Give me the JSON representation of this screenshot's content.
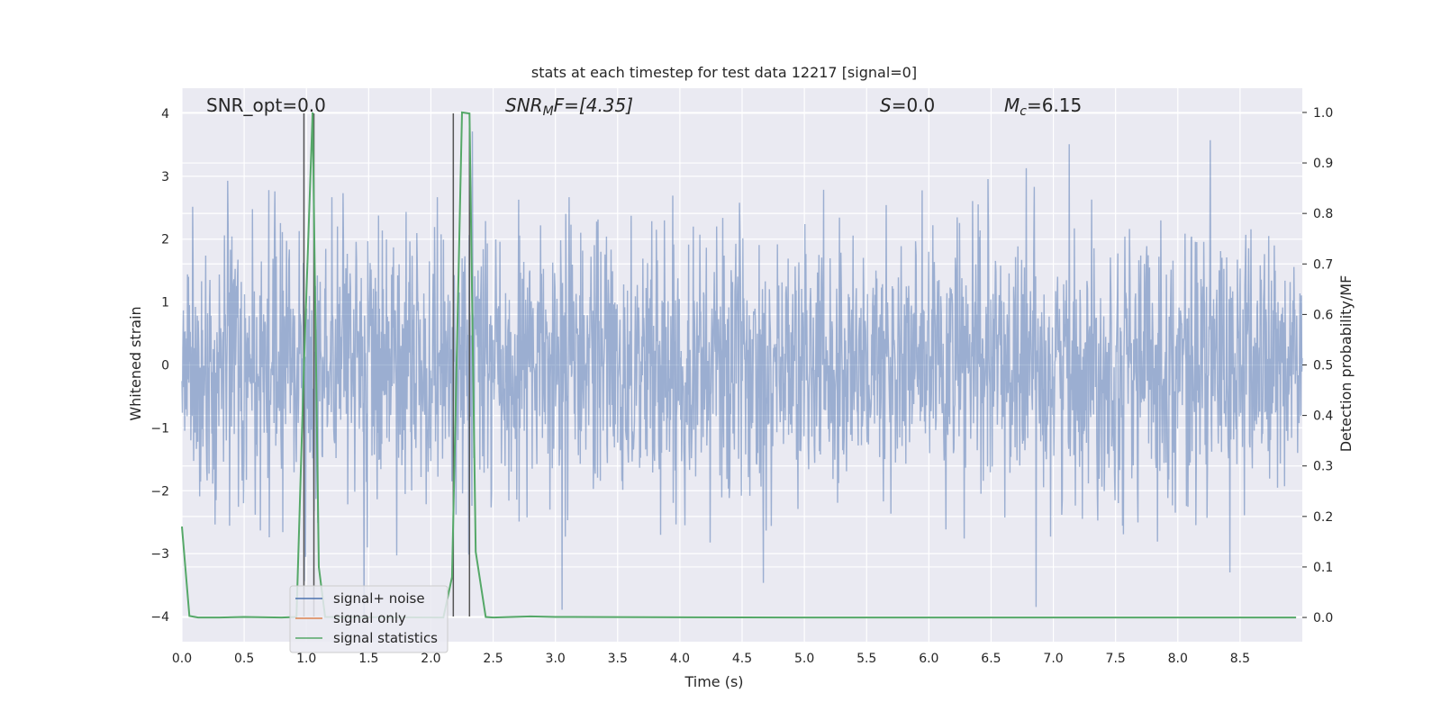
{
  "chart_data": {
    "type": "line",
    "title": "stats at each timestep for test data 12217 [signal=0]",
    "xlabel": "Time (s)",
    "ylabel": "Whitened strain",
    "y2label": "Detection probability/MF",
    "xlim": [
      0,
      9.0
    ],
    "ylim": [
      -4.4,
      4.4
    ],
    "y2lim": [
      -0.048,
      1.048
    ],
    "xticks": [
      "0.0",
      "0.5",
      "1.0",
      "1.5",
      "2.0",
      "2.5",
      "3.0",
      "3.5",
      "4.0",
      "4.5",
      "5.0",
      "5.5",
      "6.0",
      "6.5",
      "7.0",
      "7.5",
      "8.0",
      "8.5"
    ],
    "yticks": [
      "4",
      "3",
      "2",
      "1",
      "0",
      "−1",
      "−2",
      "−3",
      "−4"
    ],
    "y2ticks": [
      "1.0",
      "0.9",
      "0.8",
      "0.7",
      "0.6",
      "0.5",
      "0.4",
      "0.3",
      "0.2",
      "0.1",
      "0.0"
    ],
    "grid": true,
    "legend_position": "lower-left",
    "annotations": {
      "snr_opt": "SNR_opt=0.0",
      "snr_mf_base": "SNR",
      "snr_mf_sub": "M",
      "snr_mf_rest": "F=[4.35]",
      "s_var": "S",
      "s_rest": "=0.0",
      "mc_var": "M",
      "mc_sub": "c",
      "mc_rest": "=6.15"
    },
    "series": [
      {
        "name": "signal+ noise",
        "color": "#4c72b0",
        "description_values": "whitened noise ~ N(0,1), range approx [-4, 4]",
        "noise_std": 1.0,
        "x_range": [
          0,
          9.0
        ]
      },
      {
        "name": "signal only",
        "color": "#dd8452",
        "values": []
      },
      {
        "name": "signal statistics",
        "color": "#55a868",
        "x": [
          0.0,
          0.06,
          0.13,
          0.3,
          0.5,
          0.8,
          0.92,
          0.98,
          1.05,
          1.1,
          1.15,
          2.1,
          2.17,
          2.25,
          2.31,
          2.36,
          2.44,
          2.5,
          2.8,
          3.0,
          5.0,
          8.95
        ],
        "values": [
          0.18,
          0.003,
          0.0,
          0.0,
          0.001,
          0.0,
          0.001,
          0.5,
          1.0,
          0.1,
          0.001,
          0.0,
          0.08,
          1.0,
          0.998,
          0.13,
          0.001,
          0.0,
          0.002,
          0.001,
          0.0,
          0.0
        ]
      }
    ],
    "vlines": [
      0.98,
      1.06,
      2.18,
      2.31
    ],
    "vline_color": "#555555"
  }
}
